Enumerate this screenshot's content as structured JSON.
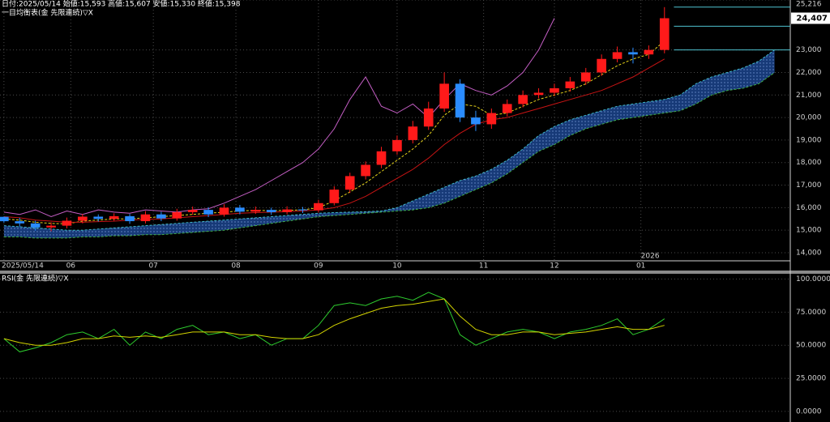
{
  "chart_data": [
    {
      "type": "candlestick",
      "info": "日付:2025/05/14 始値:15,593 高値:15,607 安値:15,330 終値:15,398",
      "title": "一目均衡表(金 先限連続)▽X",
      "x": [
        0,
        4,
        8,
        12,
        16,
        20,
        24,
        28,
        32,
        36,
        40,
        44,
        48,
        52,
        56,
        60,
        64,
        68,
        72,
        76,
        80,
        84,
        88,
        92,
        96,
        100,
        104,
        108,
        112,
        116,
        120,
        124,
        128,
        132,
        136,
        140,
        144,
        148,
        152,
        156,
        160,
        164,
        168
      ],
      "open": [
        15593,
        15398,
        15300,
        15120,
        15200,
        15420,
        15600,
        15500,
        15620,
        15400,
        15700,
        15520,
        15800,
        15900,
        15700,
        16000,
        15820,
        15900,
        15800,
        15920,
        15880,
        16200,
        16800,
        17400,
        17900,
        18500,
        19000,
        19600,
        20400,
        21500,
        20000,
        19700,
        20200,
        20600,
        21000,
        21100,
        21300,
        21600,
        22000,
        22600,
        22900,
        22800,
        23000
      ],
      "high": [
        15607,
        15550,
        15420,
        15350,
        15560,
        15720,
        15700,
        15750,
        15720,
        15850,
        15820,
        15950,
        16050,
        16020,
        16150,
        16120,
        16050,
        16000,
        16060,
        16030,
        16350,
        16950,
        17550,
        18050,
        18700,
        19200,
        19850,
        20700,
        22000,
        21700,
        20300,
        20400,
        20800,
        21200,
        21300,
        21500,
        21800,
        22200,
        22800,
        23150,
        23100,
        23200,
        24900
      ],
      "low": [
        15330,
        15150,
        14980,
        14950,
        15080,
        15300,
        15380,
        15400,
        15280,
        15300,
        15400,
        15420,
        15680,
        15580,
        15600,
        15700,
        15720,
        15680,
        15700,
        15760,
        15780,
        16100,
        16650,
        17250,
        17750,
        18350,
        18850,
        19450,
        20250,
        19800,
        19400,
        19500,
        20050,
        20450,
        20850,
        20950,
        21150,
        21450,
        21850,
        22450,
        22400,
        22600,
        22850
      ],
      "close": [
        15398,
        15300,
        15120,
        15200,
        15420,
        15600,
        15500,
        15620,
        15400,
        15700,
        15520,
        15800,
        15900,
        15700,
        16000,
        15820,
        15900,
        15800,
        15920,
        15880,
        16200,
        16800,
        17400,
        17900,
        18500,
        19000,
        19600,
        20400,
        21500,
        20000,
        19700,
        20200,
        20600,
        21000,
        21100,
        21300,
        21600,
        22000,
        22600,
        22900,
        22800,
        23000,
        24407
      ],
      "up_color": "#ff1a1a",
      "down_color": "#2a8cff",
      "lines": [
        {
          "color": "#e6d21a",
          "dash": true,
          "values": [
            15500,
            15450,
            15350,
            15300,
            15280,
            15400,
            15450,
            15500,
            15500,
            15550,
            15600,
            15650,
            15700,
            15750,
            15800,
            15850,
            15880,
            15870,
            15880,
            15900,
            16000,
            16300,
            16700,
            17100,
            17600,
            18100,
            18600,
            19200,
            20100,
            20600,
            20500,
            20100,
            20200,
            20500,
            20800,
            21000,
            21200,
            21500,
            21900,
            22300,
            22600,
            22800,
            23400
          ]
        },
        {
          "color": "#c81414",
          "dash": false,
          "values": [
            15600,
            15550,
            15450,
            15400,
            15350,
            15350,
            15380,
            15400,
            15450,
            15480,
            15500,
            15550,
            15600,
            15650,
            15700,
            15750,
            15780,
            15800,
            15820,
            15850,
            15900,
            16000,
            16200,
            16500,
            16900,
            17300,
            17700,
            18200,
            18800,
            19300,
            19700,
            19900,
            20000,
            20200,
            20400,
            20600,
            20800,
            21000,
            21200,
            21500,
            21800,
            22200,
            22600
          ]
        }
      ],
      "chikou": {
        "color": "#c45ec4",
        "x": [
          0,
          4,
          8,
          12,
          16,
          20,
          24,
          28,
          32,
          36,
          40,
          44,
          48,
          52,
          56,
          60,
          64,
          68,
          72,
          76,
          80,
          84,
          88,
          92,
          96,
          100,
          104,
          108,
          112,
          116,
          120,
          124,
          128,
          132,
          136,
          140
        ],
        "values": [
          15800,
          15700,
          15900,
          15600,
          15850,
          15700,
          15900,
          15800,
          15750,
          15900,
          15850,
          15800,
          15900,
          15950,
          16200,
          16500,
          16800,
          17200,
          17600,
          18000,
          18600,
          19500,
          20800,
          21800,
          20500,
          20200,
          20600,
          20000,
          20800,
          21500,
          21200,
          21000,
          21400,
          22000,
          23000,
          24407
        ]
      },
      "cloud": {
        "fill": "#173a78",
        "x": [
          0,
          4,
          8,
          12,
          16,
          20,
          24,
          28,
          32,
          36,
          40,
          44,
          48,
          52,
          56,
          60,
          64,
          68,
          72,
          76,
          80,
          84,
          88,
          92,
          96,
          100,
          104,
          108,
          112,
          116,
          120,
          124,
          128,
          132,
          136,
          140,
          144,
          148,
          152,
          156,
          160,
          164,
          168,
          172,
          176,
          180,
          184,
          188,
          192,
          196
        ],
        "span_a": {
          "color": "#3fb8c8",
          "values": [
            15200,
            15150,
            15100,
            15050,
            15000,
            15000,
            15050,
            15100,
            15150,
            15200,
            15250,
            15300,
            15350,
            15400,
            15450,
            15500,
            15550,
            15600,
            15650,
            15700,
            15750,
            15780,
            15800,
            15820,
            15850,
            16000,
            16300,
            16600,
            16900,
            17200,
            17400,
            17700,
            18100,
            18600,
            19200,
            19600,
            19900,
            20100,
            20300,
            20500,
            20600,
            20700,
            20800,
            21000,
            21500,
            21800,
            22000,
            22200,
            22500,
            23000
          ]
        },
        "span_b": {
          "color": "#3fae4a",
          "values": [
            14700,
            14700,
            14650,
            14650,
            14650,
            14700,
            14700,
            14750,
            14750,
            14800,
            14800,
            14850,
            14900,
            14950,
            15000,
            15100,
            15200,
            15300,
            15400,
            15500,
            15600,
            15650,
            15700,
            15750,
            15800,
            15850,
            15900,
            16000,
            16200,
            16500,
            16800,
            17100,
            17500,
            18000,
            18500,
            18800,
            19200,
            19500,
            19700,
            19900,
            20000,
            20100,
            20200,
            20300,
            20600,
            21000,
            21200,
            21300,
            21500,
            22000
          ]
        }
      },
      "levels": [
        24900,
        24050,
        23000
      ],
      "level_color": "#4fc3d0",
      "last": {
        "value": 24407,
        "label": "24,407"
      },
      "xlim": [
        -1,
        200
      ],
      "xticks": [
        {
          "value": 0,
          "label": "2025/05/14"
        },
        {
          "value": 17,
          "label": "06"
        },
        {
          "value": 38,
          "label": "07"
        },
        {
          "value": 59,
          "label": "08"
        },
        {
          "value": 80,
          "label": "09"
        },
        {
          "value": 100,
          "label": "10"
        },
        {
          "value": 122,
          "label": "11"
        },
        {
          "value": 140,
          "label": "12"
        },
        {
          "value": 162,
          "label": "01"
        }
      ],
      "year_label": {
        "value": 162,
        "label": "2026"
      },
      "ylim": [
        13640,
        25216
      ],
      "yticks": [
        {
          "value": 14000,
          "label": "14,000"
        },
        {
          "value": 15000,
          "label": "15,000"
        },
        {
          "value": 16000,
          "label": "16,000"
        },
        {
          "value": 17000,
          "label": "17,000"
        },
        {
          "value": 18000,
          "label": "18,000"
        },
        {
          "value": 19000,
          "label": "19,000"
        },
        {
          "value": 20000,
          "label": "20,000"
        },
        {
          "value": 21000,
          "label": "21,000"
        },
        {
          "value": 22000,
          "label": "22,000"
        },
        {
          "value": 23000,
          "label": "23,000"
        },
        {
          "value": 25216,
          "label": "25,216"
        }
      ],
      "grid": true
    },
    {
      "type": "line",
      "title": "RSI(金 先限連続)▽X",
      "x": [
        0,
        4,
        8,
        12,
        16,
        20,
        24,
        28,
        32,
        36,
        40,
        44,
        48,
        52,
        56,
        60,
        64,
        68,
        72,
        76,
        80,
        84,
        88,
        92,
        96,
        100,
        104,
        108,
        112,
        116,
        120,
        124,
        128,
        132,
        136,
        140,
        144,
        148,
        152,
        156,
        160,
        164,
        168
      ],
      "series": [
        {
          "color": "#2ecc2e",
          "values": [
            55,
            45,
            48,
            52,
            58,
            60,
            55,
            62,
            50,
            60,
            55,
            62,
            65,
            58,
            60,
            55,
            58,
            50,
            55,
            55,
            65,
            80,
            82,
            80,
            85,
            87,
            84,
            90,
            85,
            58,
            50,
            55,
            60,
            62,
            60,
            55,
            60,
            62,
            65,
            70,
            58,
            62,
            70
          ]
        },
        {
          "color": "#d4d400",
          "values": [
            55,
            52,
            50,
            50,
            52,
            55,
            55,
            57,
            56,
            57,
            56,
            58,
            60,
            60,
            60,
            58,
            58,
            56,
            55,
            55,
            58,
            65,
            70,
            74,
            78,
            80,
            81,
            83,
            85,
            72,
            62,
            58,
            58,
            60,
            60,
            58,
            59,
            60,
            62,
            64,
            62,
            62,
            65
          ]
        }
      ],
      "xlim": [
        -1,
        200
      ],
      "ylim": [
        -8,
        104
      ],
      "yticks": [
        {
          "value": 100,
          "label": "100.0000"
        },
        {
          "value": 75,
          "label": "75.0000"
        },
        {
          "value": 50,
          "label": "50.0000"
        },
        {
          "value": 25,
          "label": "25.0000"
        },
        {
          "value": 0,
          "label": "0.0000"
        }
      ],
      "grid": true
    }
  ]
}
